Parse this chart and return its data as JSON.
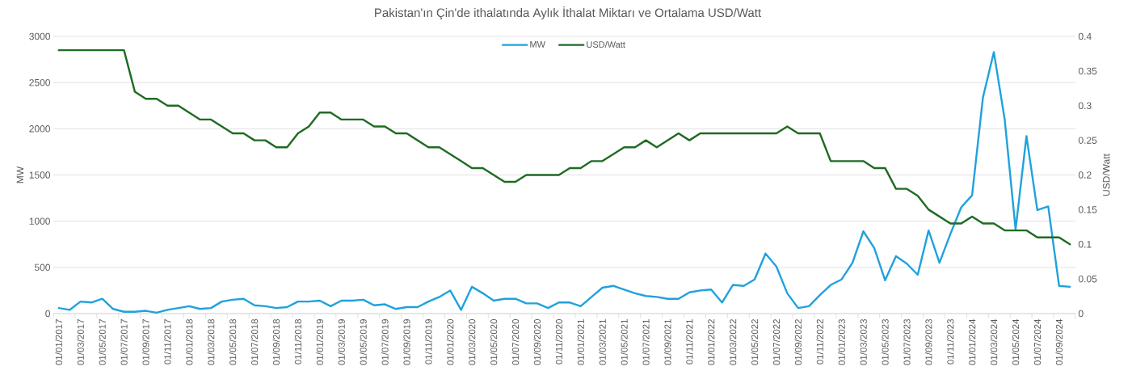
{
  "chart_data": {
    "type": "line",
    "title": "Pakistan'ın Çin'de ithalatında Aylık İthalat Miktarı ve Ortalama USD/Watt",
    "ylabel": "MW",
    "y2label": "USD/Watt",
    "categories": [
      "01/01/2017",
      null,
      "01/03/2017",
      null,
      "01/05/2017",
      null,
      "01/07/2017",
      null,
      "01/09/2017",
      null,
      "01/11/2017",
      null,
      "01/01/2018",
      null,
      "01/03/2018",
      null,
      "01/05/2018",
      null,
      "01/07/2018",
      null,
      "01/09/2018",
      null,
      "01/11/2018",
      null,
      "01/01/2019",
      null,
      "01/03/2019",
      null,
      "01/05/2019",
      null,
      "01/07/2019",
      null,
      "01/09/2019",
      null,
      "01/11/2019",
      null,
      "01/01/2020",
      null,
      "01/03/2020",
      null,
      "01/05/2020",
      null,
      "01/07/2020",
      null,
      "01/09/2020",
      null,
      "01/11/2020",
      null,
      "01/01/2021",
      null,
      "01/03/2021",
      null,
      "01/05/2021",
      null,
      "01/07/2021",
      null,
      "01/09/2021",
      null,
      "01/11/2021",
      null,
      "01/01/2022",
      null,
      "01/03/2022",
      null,
      "01/05/2022",
      null,
      "01/07/2022",
      null,
      "01/09/2022",
      null,
      "01/11/2022",
      null,
      "01/01/2023",
      null,
      "01/03/2023",
      null,
      "01/05/2023",
      null,
      "01/07/2023",
      null,
      "01/09/2023",
      null,
      "01/11/2023",
      null,
      "01/01/2024",
      null,
      "01/03/2024",
      null,
      "01/05/2024",
      null,
      "01/07/2024",
      null,
      "01/09/2024",
      null
    ],
    "series": [
      {
        "name": "MW",
        "color": "#1fa2dc",
        "values": [
          60,
          40,
          130,
          120,
          160,
          50,
          20,
          20,
          30,
          10,
          40,
          60,
          80,
          50,
          60,
          130,
          150,
          160,
          90,
          80,
          60,
          70,
          130,
          130,
          140,
          80,
          140,
          140,
          150,
          90,
          100,
          50,
          70,
          70,
          130,
          180,
          250,
          40,
          290,
          220,
          140,
          160,
          160,
          110,
          110,
          60,
          120,
          120,
          80,
          180,
          280,
          300,
          260,
          220,
          190,
          180,
          160,
          160,
          230,
          250,
          260,
          120,
          310,
          300,
          370,
          650,
          510,
          220,
          60,
          80,
          200,
          310,
          370,
          550,
          890,
          710,
          360,
          620,
          540,
          420,
          900,
          550,
          860,
          1150,
          1280,
          2340,
          2830,
          2100,
          910,
          1920,
          1120,
          1160,
          300,
          290
        ]
      },
      {
        "name": "USD/Watt",
        "color": "#1e6b22",
        "axis": "y2",
        "values": [
          0.38,
          0.38,
          0.38,
          0.38,
          0.38,
          0.38,
          0.38,
          0.32,
          0.31,
          0.31,
          0.3,
          0.3,
          0.29,
          0.28,
          0.28,
          0.27,
          0.26,
          0.26,
          0.25,
          0.25,
          0.24,
          0.24,
          0.26,
          0.27,
          0.29,
          0.29,
          0.28,
          0.28,
          0.28,
          0.27,
          0.27,
          0.26,
          0.26,
          0.25,
          0.24,
          0.24,
          0.23,
          0.22,
          0.21,
          0.21,
          0.2,
          0.19,
          0.19,
          0.2,
          0.2,
          0.2,
          0.2,
          0.21,
          0.21,
          0.22,
          0.22,
          0.23,
          0.24,
          0.24,
          0.25,
          0.24,
          0.25,
          0.26,
          0.25,
          0.26,
          0.26,
          0.26,
          0.26,
          0.26,
          0.26,
          0.26,
          0.26,
          0.27,
          0.26,
          0.26,
          0.26,
          0.22,
          0.22,
          0.22,
          0.22,
          0.21,
          0.21,
          0.18,
          0.18,
          0.17,
          0.15,
          0.14,
          0.13,
          0.13,
          0.14,
          0.13,
          0.13,
          0.12,
          0.12,
          0.12,
          0.11,
          0.11,
          0.11,
          0.1
        ]
      }
    ],
    "ylim": [
      0,
      3000
    ],
    "yticks": [
      0,
      500,
      1000,
      1500,
      2000,
      2500,
      3000
    ],
    "y2lim": [
      0,
      0.4
    ],
    "y2ticks": [
      0,
      0.05,
      0.1,
      0.15,
      0.2,
      0.25,
      0.3,
      0.35,
      0.4
    ],
    "grid": "y",
    "legend": "top"
  }
}
